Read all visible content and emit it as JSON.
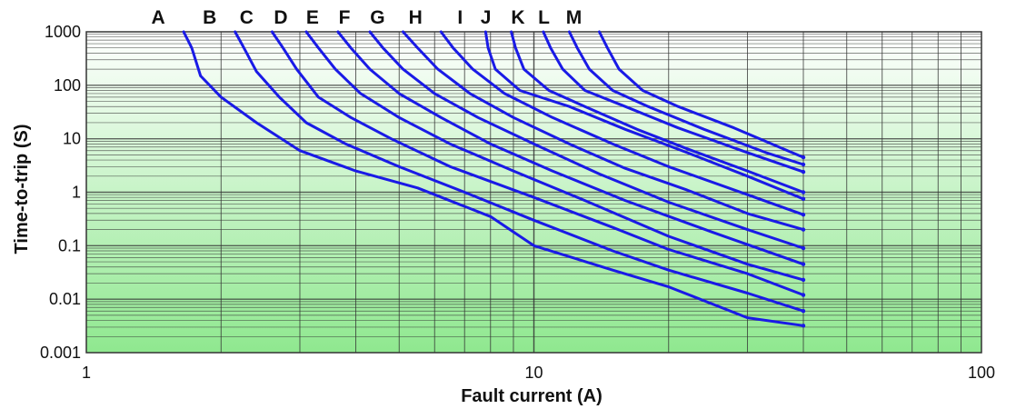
{
  "chart_data": {
    "type": "line",
    "title": "",
    "xlabel": "Fault current (A)",
    "ylabel": "Time-to-trip (S)",
    "x_scale": "log",
    "y_scale": "log",
    "xlim": [
      1,
      100
    ],
    "ylim": [
      0.001,
      1000
    ],
    "x_ticks": [
      {
        "value": 1,
        "label": "1"
      },
      {
        "value": 10,
        "label": "10"
      },
      {
        "value": 100,
        "label": "100"
      }
    ],
    "y_ticks": [
      {
        "value": 0.001,
        "label": "0.001"
      },
      {
        "value": 0.01,
        "label": "0.01"
      },
      {
        "value": 0.1,
        "label": "0.1"
      },
      {
        "value": 1,
        "label": "1"
      },
      {
        "value": 10,
        "label": "10"
      },
      {
        "value": 100,
        "label": "100"
      },
      {
        "value": 1000,
        "label": "1000"
      }
    ],
    "grid": true,
    "legend": "none",
    "colors": {
      "line": "#1a1ae6",
      "grid": "#333333",
      "background_top": "#ffffff",
      "background_bottom": "#8fe88f"
    },
    "series": [
      {
        "name": "A",
        "x": [
          1.65,
          1.72,
          1.8,
          2.0,
          2.4,
          3.0,
          4.0,
          5.5,
          8.0,
          10.0,
          15.0,
          20.0,
          30.0,
          40.0
        ],
        "y": [
          1000,
          500,
          150,
          60,
          20,
          6,
          2.5,
          1.2,
          0.35,
          0.1,
          0.035,
          0.017,
          0.0045,
          0.0032
        ]
      },
      {
        "name": "B",
        "x": [
          2.15,
          2.25,
          2.4,
          2.7,
          3.1,
          3.8,
          5.0,
          7.0,
          10.0,
          15.0,
          20.0,
          30.0,
          40.0
        ],
        "y": [
          1000,
          500,
          180,
          60,
          20,
          8,
          3.0,
          1.0,
          0.3,
          0.08,
          0.035,
          0.013,
          0.006
        ]
      },
      {
        "name": "C",
        "x": [
          2.6,
          2.75,
          2.95,
          3.3,
          3.9,
          4.8,
          6.5,
          10.0,
          15.0,
          20.0,
          30.0,
          40.0
        ],
        "y": [
          1000,
          500,
          200,
          60,
          25,
          10,
          3.0,
          0.8,
          0.22,
          0.085,
          0.03,
          0.012
        ]
      },
      {
        "name": "D",
        "x": [
          3.1,
          3.3,
          3.6,
          4.1,
          5.0,
          6.5,
          9.0,
          13.0,
          20.0,
          30.0,
          40.0
        ],
        "y": [
          1000,
          500,
          200,
          70,
          25,
          8,
          2.5,
          0.7,
          0.15,
          0.045,
          0.023
        ]
      },
      {
        "name": "E",
        "x": [
          3.65,
          3.9,
          4.3,
          5.0,
          6.2,
          8.0,
          11.0,
          16.0,
          25.0,
          40.0
        ],
        "y": [
          1000,
          500,
          200,
          70,
          25,
          8,
          2.5,
          0.7,
          0.18,
          0.045
        ]
      },
      {
        "name": "F",
        "x": [
          4.3,
          4.6,
          5.1,
          6.0,
          7.5,
          10.0,
          14.0,
          20.0,
          30.0,
          40.0
        ],
        "y": [
          1000,
          500,
          200,
          70,
          25,
          8,
          2.2,
          0.65,
          0.2,
          0.09
        ]
      },
      {
        "name": "G",
        "x": [
          5.1,
          5.5,
          6.1,
          7.2,
          9.0,
          12.0,
          16.0,
          22.0,
          30.0,
          40.0
        ],
        "y": [
          1000,
          500,
          200,
          70,
          25,
          8,
          2.8,
          1.1,
          0.4,
          0.2
        ]
      },
      {
        "name": "H",
        "x": [
          6.2,
          6.6,
          7.3,
          8.6,
          11.0,
          15.0,
          20.0,
          30.0,
          40.0
        ],
        "y": [
          1000,
          500,
          200,
          70,
          25,
          8,
          3.0,
          0.9,
          0.38
        ]
      },
      {
        "name": "I",
        "x": [
          7.8,
          7.9,
          8.2,
          9.3,
          12.0,
          16.0,
          22.0,
          30.0,
          40.0
        ],
        "y": [
          1000,
          500,
          200,
          80,
          40,
          15,
          5.5,
          2.0,
          0.75
        ]
      },
      {
        "name": "J",
        "x": [
          8.9,
          9.1,
          9.5,
          10.8,
          13.0,
          17.0,
          22.0,
          30.0,
          40.0
        ],
        "y": [
          1000,
          500,
          200,
          80,
          40,
          15,
          6.5,
          2.5,
          1.0
        ]
      },
      {
        "name": "K",
        "x": [
          10.5,
          10.9,
          11.6,
          13.0,
          16.0,
          21.0,
          30.0,
          40.0
        ],
        "y": [
          1000,
          500,
          200,
          80,
          40,
          16,
          5.5,
          2.4
        ]
      },
      {
        "name": "L",
        "x": [
          12.0,
          12.5,
          13.3,
          15.0,
          18.0,
          24.0,
          33.0,
          40.0
        ],
        "y": [
          1000,
          500,
          200,
          80,
          40,
          15,
          5.5,
          3.3
        ]
      },
      {
        "name": "M",
        "x": [
          14.0,
          14.6,
          15.5,
          17.5,
          21.0,
          28.0,
          40.0
        ],
        "y": [
          1000,
          500,
          200,
          80,
          40,
          16,
          4.5
        ]
      }
    ]
  }
}
